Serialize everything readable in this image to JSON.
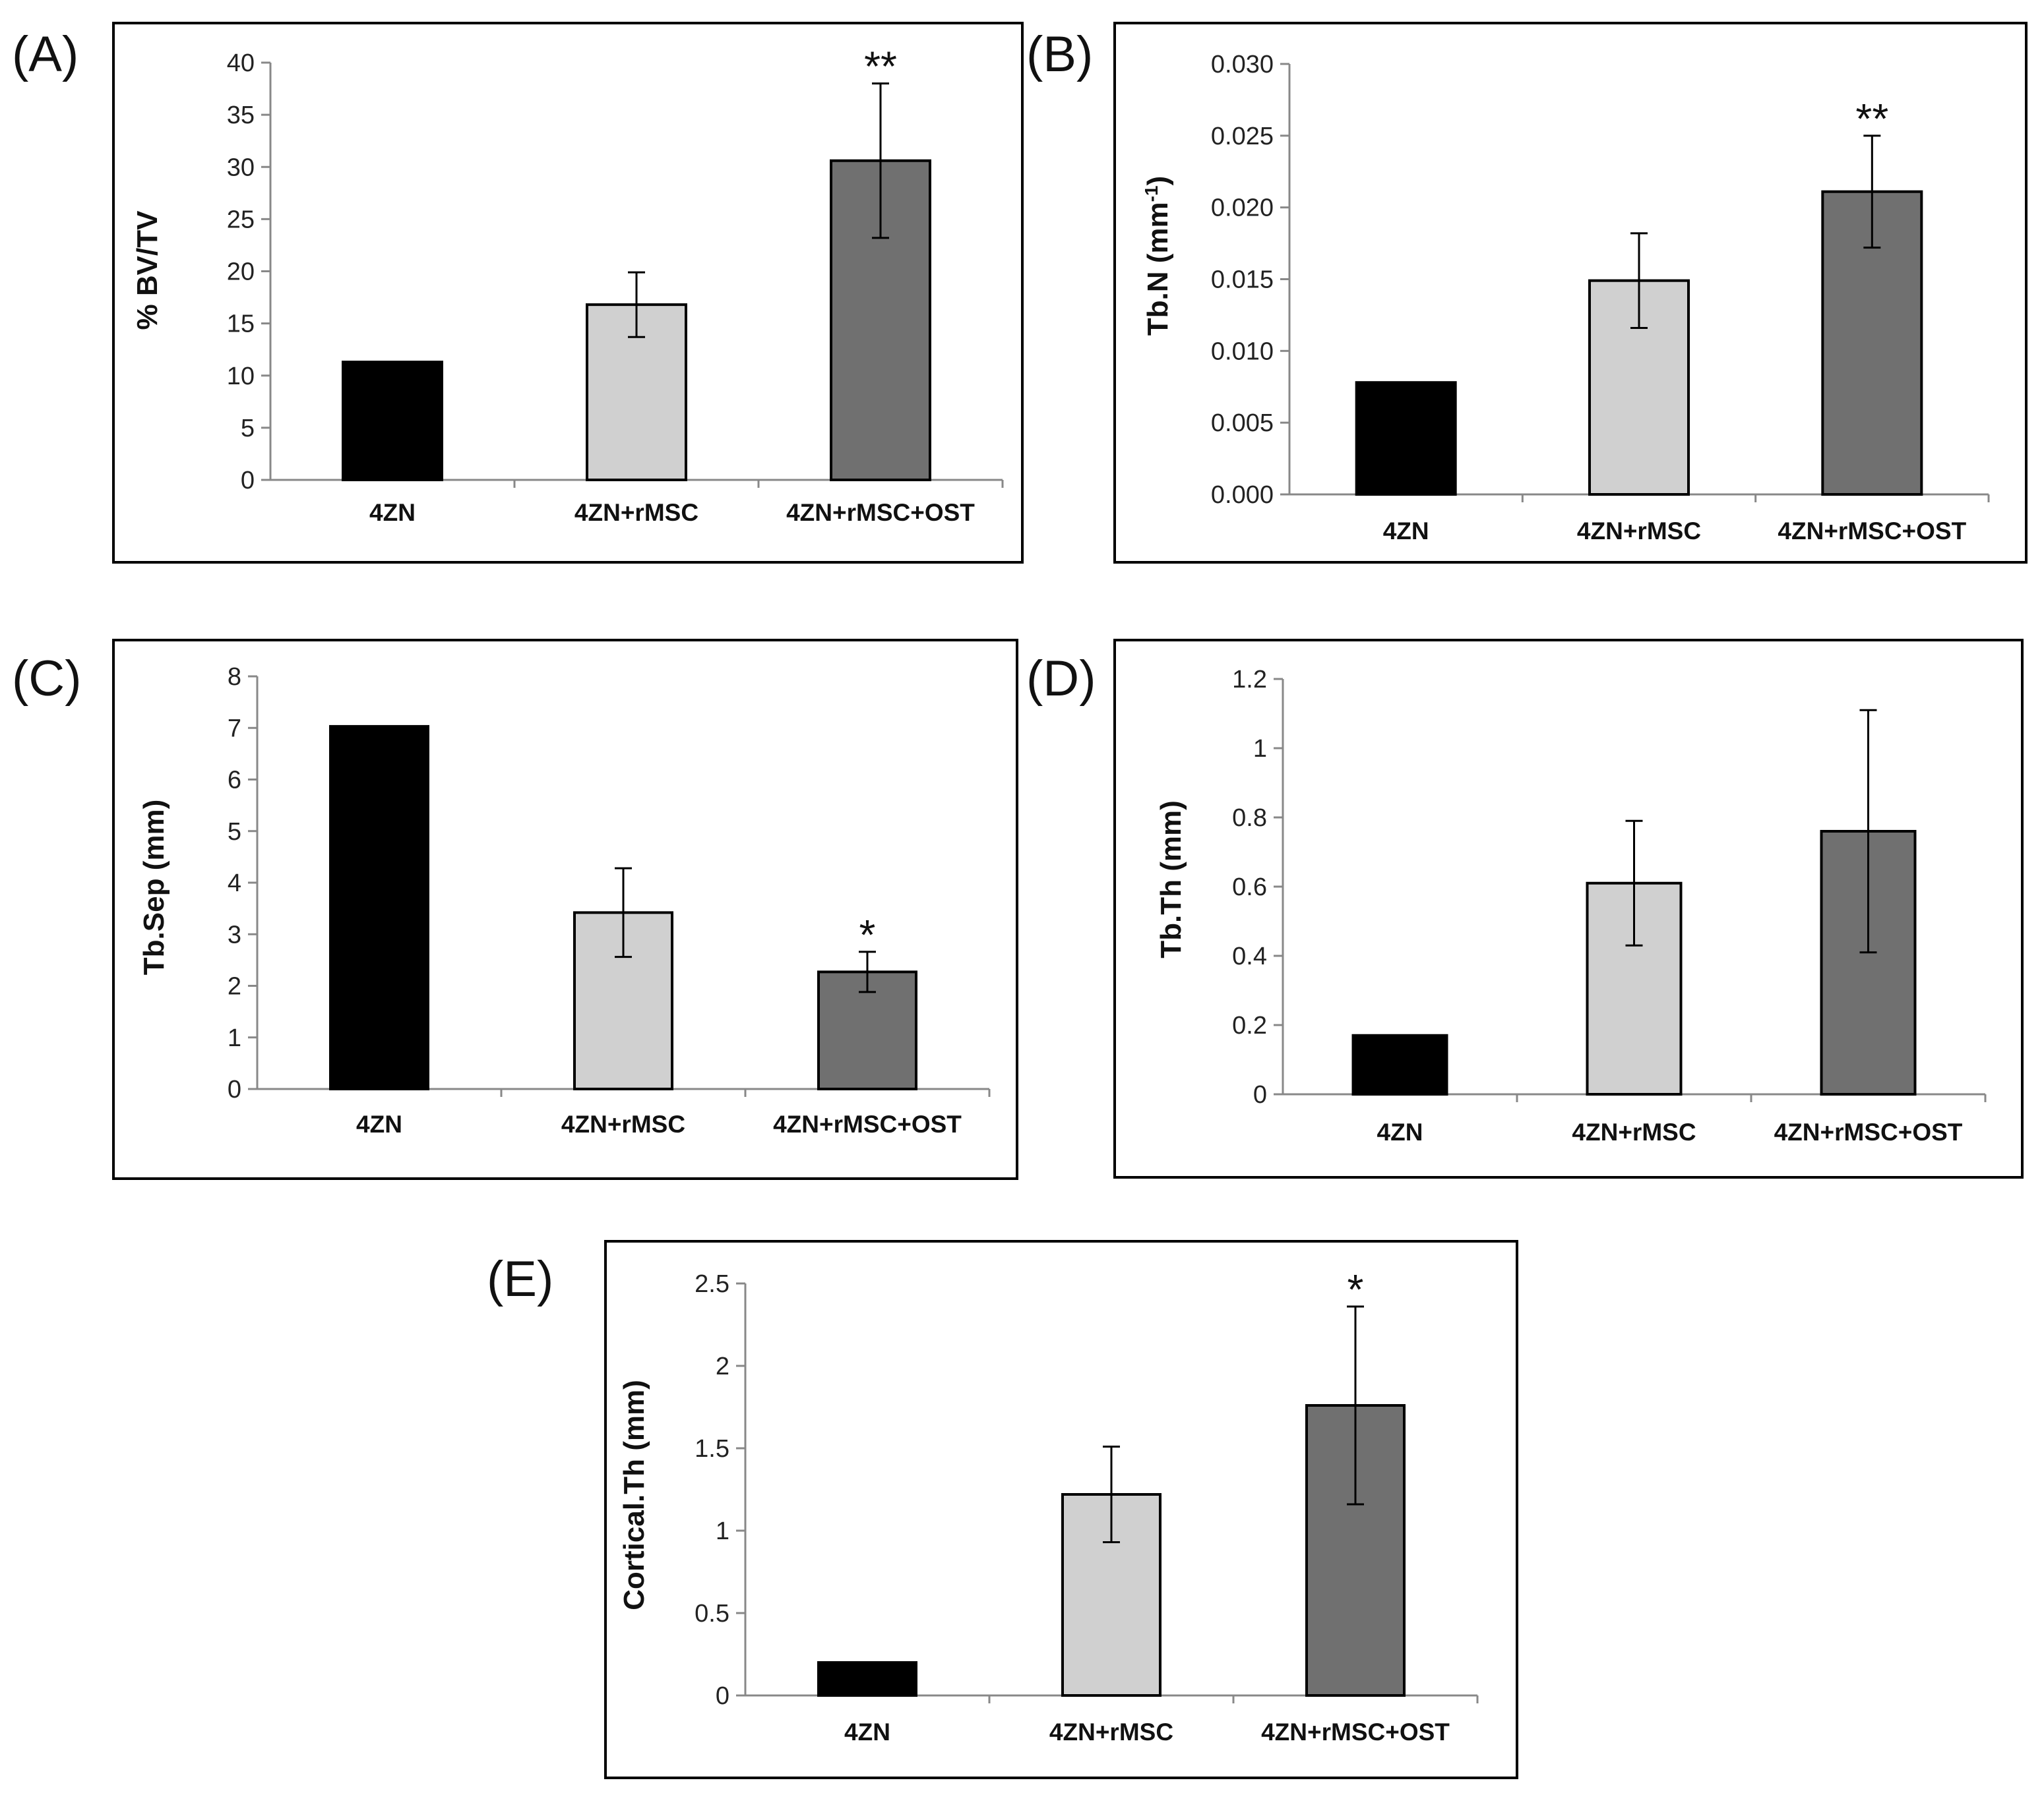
{
  "chart_data": [
    {
      "panel": "(A)",
      "type": "bar",
      "categories": [
        "4ZN",
        "4ZN+rMSC",
        "4ZN+rMSC+OST"
      ],
      "values": [
        11.3,
        16.8,
        30.6
      ],
      "errors": [
        null,
        3.1,
        7.4
      ],
      "significance": [
        "",
        "",
        "**"
      ],
      "colors": [
        "#000000",
        "#d0d0d0",
        "#707070"
      ],
      "ylabel": "% BV/TV",
      "ylim": [
        0,
        40
      ],
      "yticks": [
        "0",
        "5",
        "10",
        "15",
        "20",
        "25",
        "30",
        "35",
        "40"
      ],
      "grid": false
    },
    {
      "panel": "(B)",
      "type": "bar",
      "categories": [
        "4ZN",
        "4ZN+rMSC",
        "4ZN+rMSC+OST"
      ],
      "values": [
        0.0078,
        0.0149,
        0.0211
      ],
      "errors": [
        null,
        0.0033,
        0.0039
      ],
      "significance": [
        "",
        "",
        "**"
      ],
      "colors": [
        "#000000",
        "#d0d0d0",
        "#707070"
      ],
      "ylabel": "Tb.N (mm",
      "ylabel_superscript": "-1",
      "ylabel_suffix": ")",
      "ylim": [
        0,
        0.03
      ],
      "yticks": [
        "0.000",
        "0.005",
        "0.010",
        "0.015",
        "0.020",
        "0.025",
        "0.030"
      ],
      "grid": false
    },
    {
      "panel": "(C)",
      "type": "bar",
      "categories": [
        "4ZN",
        "4ZN+rMSC",
        "4ZN+rMSC+OST"
      ],
      "values": [
        7.03,
        3.42,
        2.27
      ],
      "errors": [
        null,
        0.86,
        0.39
      ],
      "significance": [
        "",
        "",
        "*"
      ],
      "colors": [
        "#000000",
        "#d0d0d0",
        "#707070"
      ],
      "ylabel": "Tb.Sep (mm)",
      "ylim": [
        0,
        8
      ],
      "yticks": [
        "0",
        "1",
        "2",
        "3",
        "4",
        "5",
        "6",
        "7",
        "8"
      ],
      "grid": false
    },
    {
      "panel": "(D)",
      "type": "bar",
      "categories": [
        "4ZN",
        "4ZN+rMSC",
        "4ZN+rMSC+OST"
      ],
      "values": [
        0.17,
        0.61,
        0.76
      ],
      "errors": [
        null,
        0.18,
        0.35
      ],
      "significance": [
        "",
        "",
        ""
      ],
      "colors": [
        "#000000",
        "#d0d0d0",
        "#707070"
      ],
      "ylabel": "Tb.Th (mm)",
      "ylim": [
        0,
        1.2
      ],
      "yticks": [
        "0",
        "0.2",
        "0.4",
        "0.6",
        "0.8",
        "1",
        "1.2"
      ],
      "grid": false
    },
    {
      "panel": "(E)",
      "type": "bar",
      "categories": [
        "4ZN",
        "4ZN+rMSC",
        "4ZN+rMSC+OST"
      ],
      "values": [
        0.2,
        1.22,
        1.76
      ],
      "errors": [
        null,
        0.29,
        0.6
      ],
      "significance": [
        "",
        "",
        "*"
      ],
      "colors": [
        "#000000",
        "#d0d0d0",
        "#707070"
      ],
      "ylabel": "Cortical.Th (mm)",
      "ylim": [
        0,
        2.5
      ],
      "yticks": [
        "0",
        "0.5",
        "1",
        "1.5",
        "2",
        "2.5"
      ],
      "grid": false
    }
  ]
}
